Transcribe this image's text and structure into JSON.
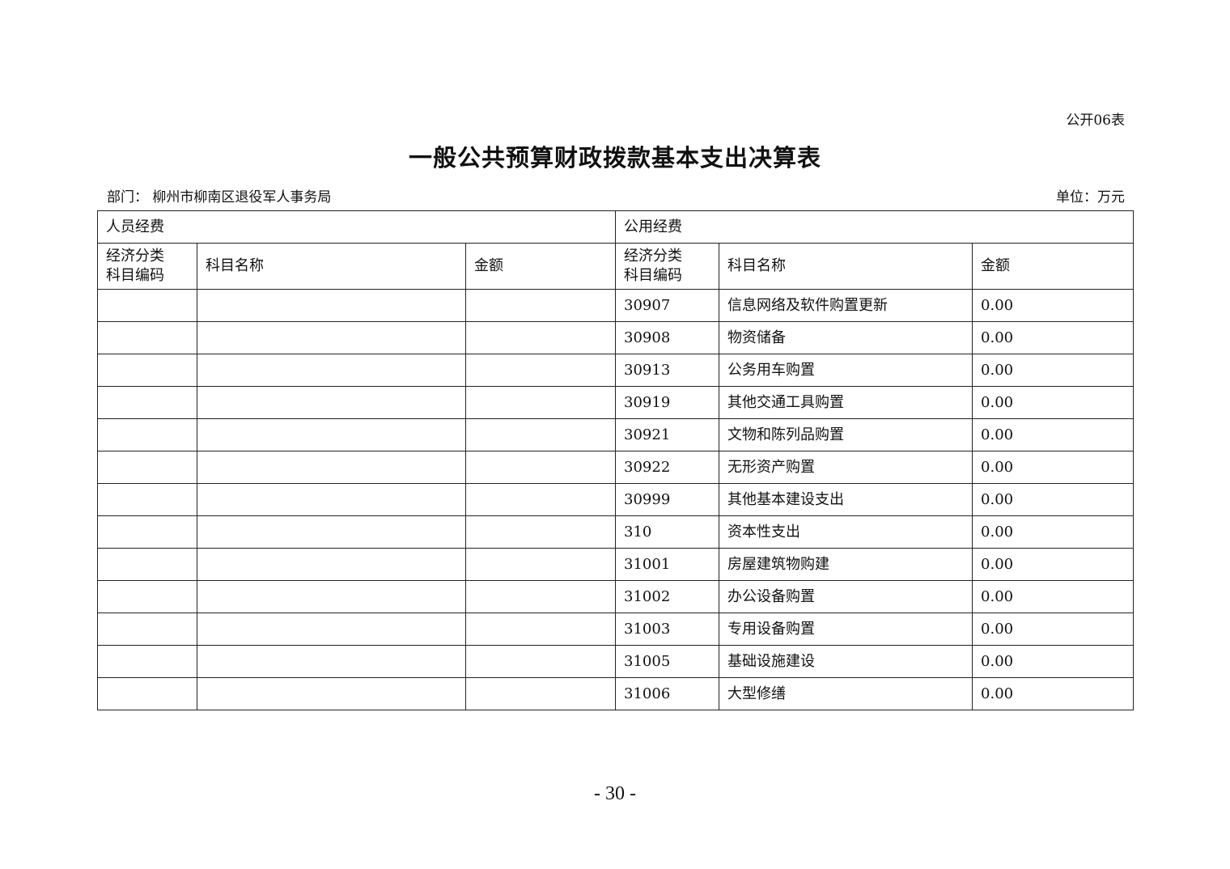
{
  "form_no": "公开06表",
  "title": "一般公共预算财政拨款基本支出决算表",
  "department": "部门：  柳州市柳南区退役军人事务局",
  "unit": "单位：万元",
  "table": {
    "group_personnel": "人员经费",
    "group_public": "公用经费",
    "col_code_line1": "经济分类",
    "col_code_line2": "科目编码",
    "col_name": "科目名称",
    "col_amount": "金额",
    "rows": [
      {
        "code": "30907",
        "name": "信息网络及软件购置更新",
        "amount": "0.00"
      },
      {
        "code": "30908",
        "name": "物资储备",
        "amount": "0.00"
      },
      {
        "code": "30913",
        "name": "公务用车购置",
        "amount": "0.00"
      },
      {
        "code": "30919",
        "name": "其他交通工具购置",
        "amount": "0.00"
      },
      {
        "code": "30921",
        "name": "文物和陈列品购置",
        "amount": "0.00"
      },
      {
        "code": "30922",
        "name": "无形资产购置",
        "amount": "0.00"
      },
      {
        "code": "30999",
        "name": "其他基本建设支出",
        "amount": "0.00"
      },
      {
        "code": "310",
        "name": "资本性支出",
        "amount": "0.00"
      },
      {
        "code": "31001",
        "name": "房屋建筑物购建",
        "amount": "0.00"
      },
      {
        "code": "31002",
        "name": "办公设备购置",
        "amount": "0.00"
      },
      {
        "code": "31003",
        "name": "专用设备购置",
        "amount": "0.00"
      },
      {
        "code": "31005",
        "name": "基础设施建设",
        "amount": "0.00"
      },
      {
        "code": "31006",
        "name": "大型修缮",
        "amount": "0.00"
      }
    ]
  },
  "page_number": "- 30 -"
}
